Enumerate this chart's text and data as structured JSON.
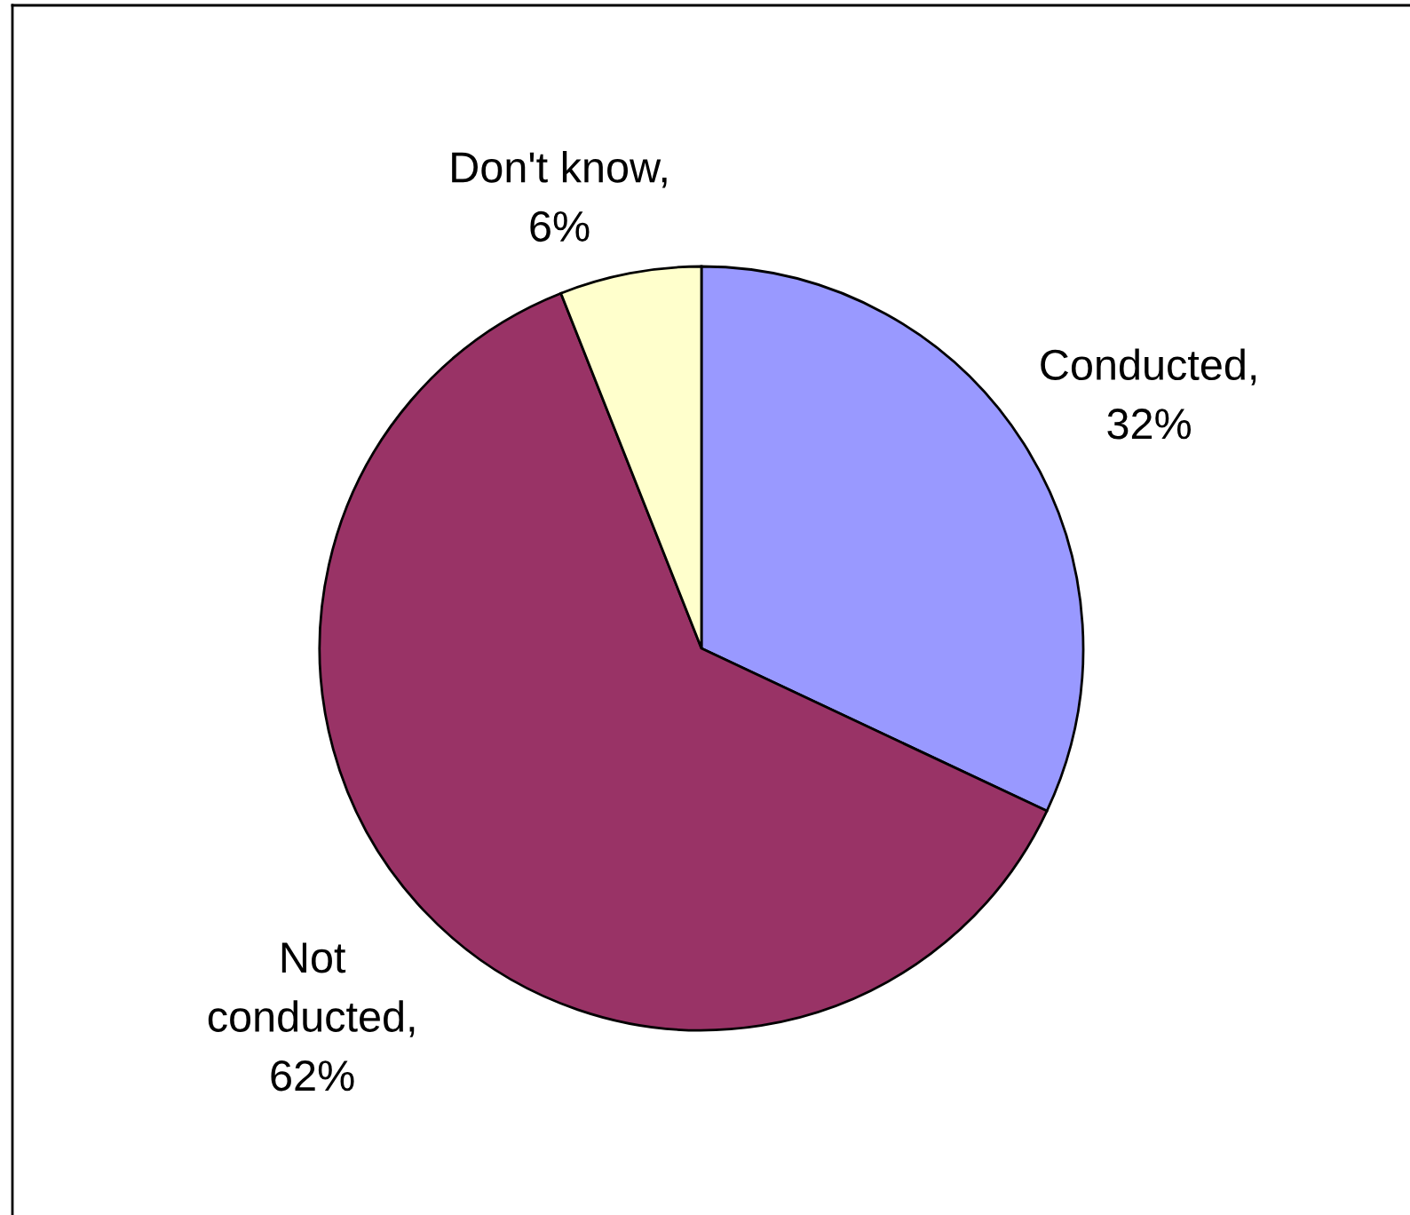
{
  "chart_data": {
    "type": "pie",
    "values": [
      32,
      62,
      6
    ],
    "colors": [
      "#9999ff",
      "#993366",
      "#ffffcc"
    ],
    "value_labels": [
      "Conducted, 32%",
      "Not conducted, 62%",
      "Don't know, 6%"
    ]
  }
}
